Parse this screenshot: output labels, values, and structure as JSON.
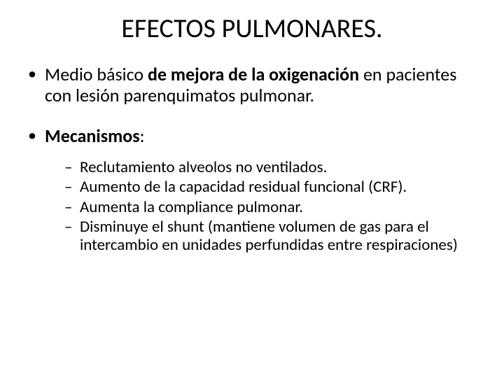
{
  "title": "EFECTOS PULMONARES.",
  "bullet1": {
    "pre": "Medio básico ",
    "bold": "de mejora de la oxigenación",
    "post": " en pacientes con lesión parenquimatos pulmonar."
  },
  "bullet2": {
    "label": "Mecanismos",
    "colon": ":",
    "items": [
      "Reclutamiento alveolos no ventilados.",
      "Aumento de la capacidad residual funcional (CRF).",
      "Aumenta la compliance pulmonar.",
      "Disminuye el shunt (mantiene volumen de gas para el intercambio en unidades perfundidas entre respiraciones)"
    ]
  },
  "colors": {
    "background": "#ffffff",
    "text": "#000000"
  },
  "typography": {
    "title_fontsize": 38,
    "level1_fontsize": 26,
    "level2_fontsize": 23,
    "font_family": "Calibri"
  }
}
